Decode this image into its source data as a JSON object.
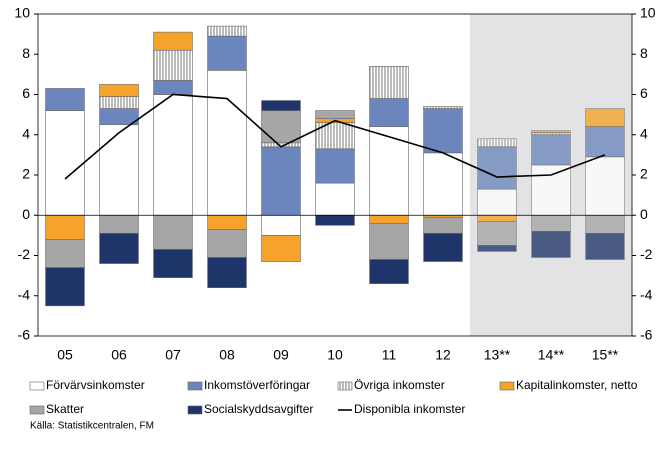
{
  "chart_data": {
    "type": "bar",
    "stacked": true,
    "categories": [
      "05",
      "06",
      "07",
      "08",
      "09",
      "10",
      "11",
      "12",
      "13**",
      "14**",
      "15**"
    ],
    "shaded_from_index": 8,
    "ylim": [
      -6,
      10
    ],
    "yticks": [
      -6,
      -4,
      -2,
      0,
      2,
      4,
      6,
      8,
      10
    ],
    "y2lim": [
      -6,
      10
    ],
    "y2ticks": [
      -6,
      -4,
      -2,
      0,
      2,
      4,
      6,
      8,
      10
    ],
    "series": [
      {
        "name": "Förvärvsinkomster",
        "color": "#ffffff",
        "values": [
          5.2,
          4.5,
          6.0,
          7.2,
          -1.0,
          1.6,
          4.4,
          3.1,
          1.3,
          2.5,
          2.9
        ]
      },
      {
        "name": "Inkomstöverföringar",
        "color": "#6b86bd",
        "values": [
          1.1,
          0.8,
          0.7,
          1.7,
          3.4,
          1.7,
          1.4,
          2.2,
          2.1,
          1.5,
          1.5
        ]
      },
      {
        "name": "Övriga inkomster",
        "color": "#ffffff",
        "pattern": "vertical-lines",
        "values": [
          0,
          0.6,
          1.5,
          0.5,
          0.2,
          1.3,
          1.6,
          0.1,
          0.4,
          0.1,
          0
        ]
      },
      {
        "name": "Kapitalinkomster, netto",
        "color": "#f5a32a",
        "values": [
          -1.2,
          0.6,
          0.9,
          -0.7,
          -1.3,
          0.2,
          -0.4,
          -0.1,
          -0.3,
          0.1,
          0.9
        ]
      },
      {
        "name": "Skatter",
        "color": "#a6a6a6",
        "values": [
          -1.4,
          -0.9,
          -1.7,
          -1.4,
          1.6,
          0.4,
          -1.8,
          -0.8,
          -1.2,
          -0.8,
          -0.9
        ]
      },
      {
        "name": "Socialskyddsavgifter",
        "color": "#1f3468",
        "values": [
          -1.9,
          -1.5,
          -1.4,
          -1.5,
          0.5,
          -0.5,
          -1.2,
          -1.4,
          -0.3,
          -1.3,
          -1.3
        ]
      },
      {
        "name": "Disponibla inkomster",
        "type": "line",
        "color": "#000000",
        "values": [
          1.8,
          4.1,
          6.0,
          5.8,
          3.4,
          4.7,
          3.9,
          3.1,
          1.9,
          2.0,
          3.0
        ]
      }
    ],
    "source": "Källa: Statistikcentralen, FM"
  }
}
